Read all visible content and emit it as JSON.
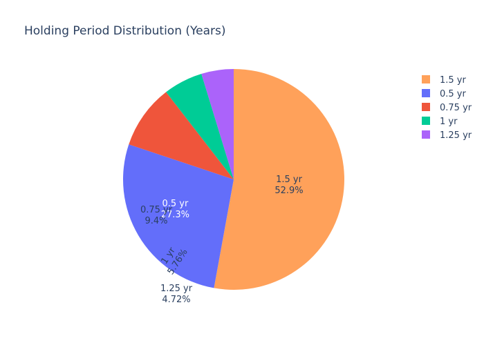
{
  "chart_data": {
    "type": "pie",
    "title": "Holding Period Distribution (Years)",
    "labels": [
      "1.5 yr",
      "0.5 yr",
      "0.75 yr",
      "1 yr",
      "1.25 yr"
    ],
    "values": [
      52.9,
      27.3,
      9.4,
      5.76,
      4.72
    ],
    "percent_labels": [
      "52.9%",
      "27.3%",
      "9.4%",
      "5.76%",
      "4.72%"
    ],
    "colors": [
      "#FFA15A",
      "#636EFA",
      "#EF553B",
      "#00CC96",
      "#AB63FA"
    ],
    "legend": {
      "placement": "top-right",
      "order": [
        "1.5 yr",
        "0.5 yr",
        "0.75 yr",
        "1 yr",
        "1.25 yr"
      ]
    },
    "start": "12 o'clock",
    "direction": "clockwise"
  }
}
